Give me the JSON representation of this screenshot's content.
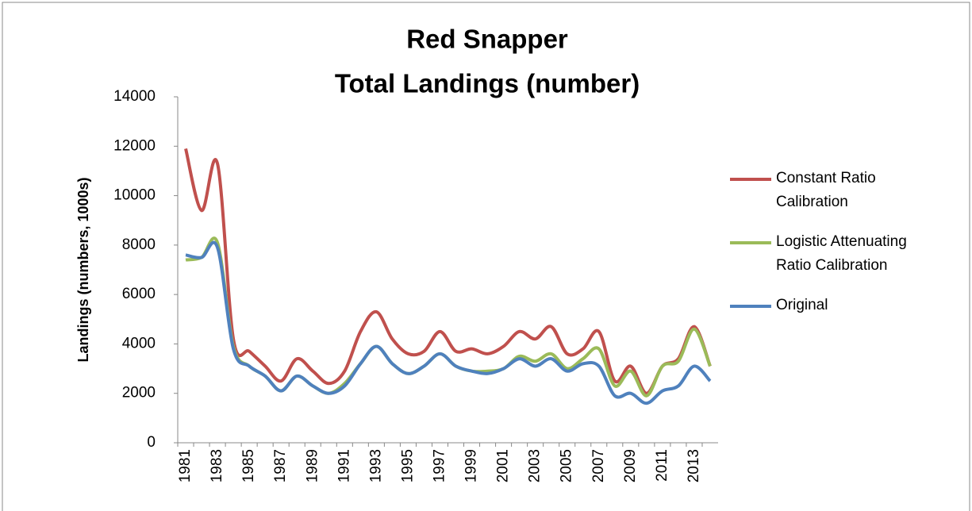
{
  "chart_data": {
    "type": "line",
    "title": [
      "Red Snapper",
      "Total Landings (number)"
    ],
    "y_label": "Landings (numbers, 1000s)",
    "categories": [
      "1981",
      null,
      "1983",
      null,
      "1985",
      null,
      "1987",
      null,
      "1989",
      null,
      "1991",
      null,
      "1993",
      null,
      "1995",
      null,
      "1997",
      null,
      "1999",
      null,
      "2001",
      null,
      "2003",
      null,
      "2005",
      null,
      "2007",
      null,
      "2009",
      null,
      "2011",
      null,
      "2013",
      null
    ],
    "series": [
      {
        "name": "Constant Ratio Calibration",
        "color": "#c0504d",
        "values": [
          11900,
          9400,
          11300,
          4200,
          3700,
          3100,
          2500,
          3400,
          2900,
          2400,
          2900,
          4500,
          5300,
          4200,
          3600,
          3700,
          4500,
          3700,
          3800,
          3600,
          3900,
          4500,
          4200,
          4700,
          3600,
          3800,
          4500,
          2500,
          3100,
          2000,
          3100,
          3400,
          4700,
          3100
        ]
      },
      {
        "name": "Logistic Attenuating Ratio Calibration",
        "color": "#9bbb59",
        "values": [
          7400,
          7500,
          8100,
          3900,
          3100,
          2700,
          2100,
          2700,
          2300,
          2000,
          2400,
          3200,
          3900,
          3200,
          2800,
          3100,
          3600,
          3100,
          2900,
          2900,
          3000,
          3500,
          3300,
          3600,
          3000,
          3400,
          3800,
          2300,
          2900,
          1900,
          3100,
          3300,
          4600,
          3100
        ]
      },
      {
        "name": "Original",
        "color": "#4f81bd",
        "values": [
          7600,
          7500,
          7900,
          3800,
          3100,
          2700,
          2100,
          2700,
          2300,
          2000,
          2300,
          3200,
          3900,
          3200,
          2800,
          3100,
          3600,
          3100,
          2900,
          2800,
          3000,
          3400,
          3100,
          3400,
          2900,
          3200,
          3100,
          1900,
          2000,
          1600,
          2100,
          2300,
          3100,
          2500
        ]
      }
    ],
    "ylim": [
      0,
      14000
    ],
    "yticks": [
      0,
      2000,
      4000,
      6000,
      8000,
      10000,
      12000,
      14000
    ],
    "legend": "right"
  }
}
